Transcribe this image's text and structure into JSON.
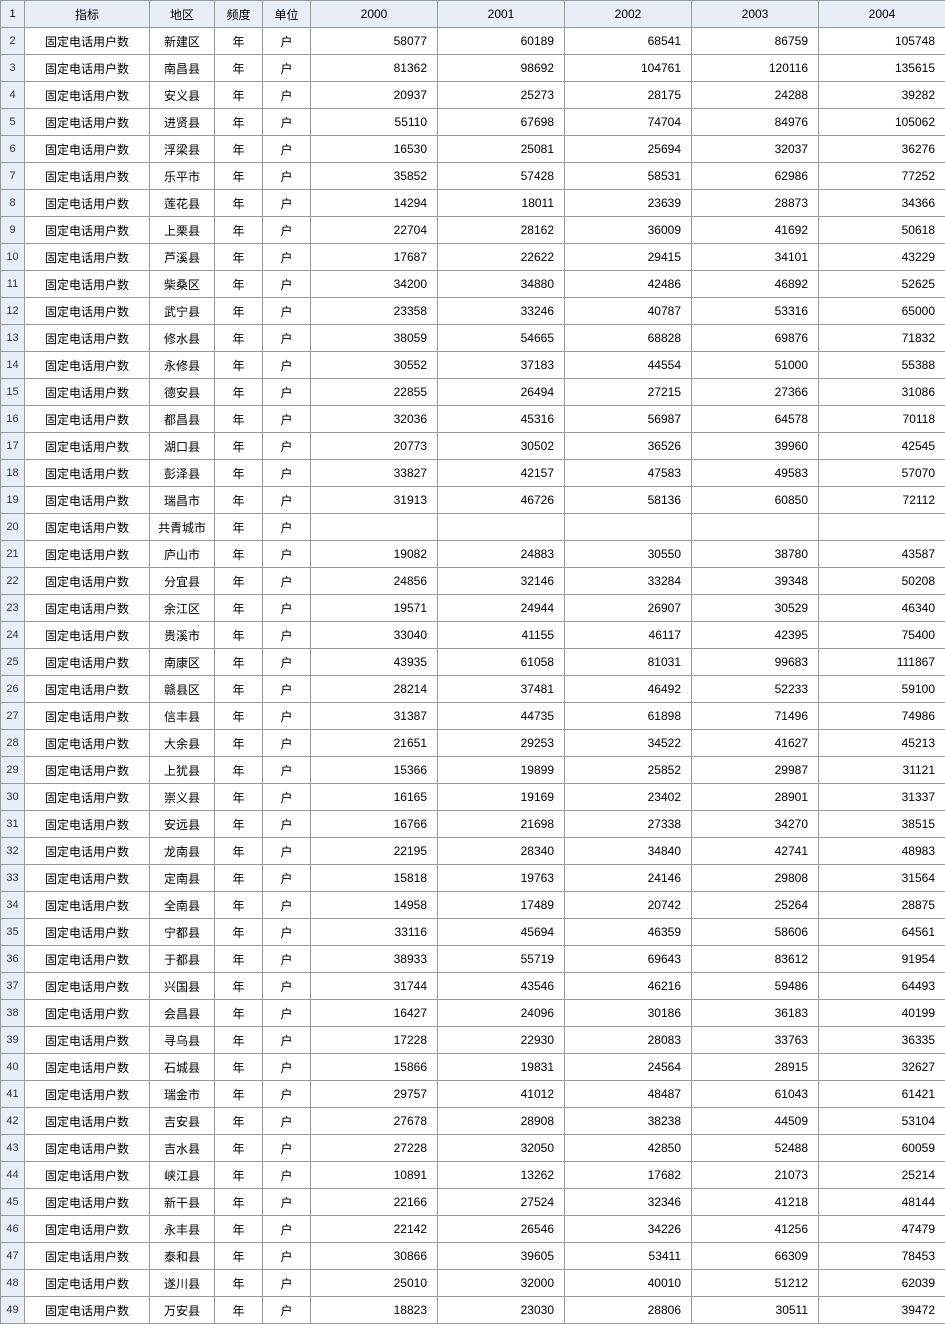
{
  "table": {
    "header_bg": "#e8eef7",
    "rownum_bg": "#e8eef7",
    "border_color": "#999999",
    "font_size": 12,
    "columns": [
      "指标",
      "地区",
      "频度",
      "单位",
      "2000",
      "2001",
      "2002",
      "2003",
      "2004"
    ],
    "rows": [
      {
        "n": 2,
        "indicator": "固定电话用户数",
        "region": "新建区",
        "freq": "年",
        "unit": "户",
        "y": [
          "58077",
          "60189",
          "68541",
          "86759",
          "105748"
        ]
      },
      {
        "n": 3,
        "indicator": "固定电话用户数",
        "region": "南昌县",
        "freq": "年",
        "unit": "户",
        "y": [
          "81362",
          "98692",
          "104761",
          "120116",
          "135615"
        ]
      },
      {
        "n": 4,
        "indicator": "固定电话用户数",
        "region": "安义县",
        "freq": "年",
        "unit": "户",
        "y": [
          "20937",
          "25273",
          "28175",
          "24288",
          "39282"
        ]
      },
      {
        "n": 5,
        "indicator": "固定电话用户数",
        "region": "进贤县",
        "freq": "年",
        "unit": "户",
        "y": [
          "55110",
          "67698",
          "74704",
          "84976",
          "105062"
        ]
      },
      {
        "n": 6,
        "indicator": "固定电话用户数",
        "region": "浮梁县",
        "freq": "年",
        "unit": "户",
        "y": [
          "16530",
          "25081",
          "25694",
          "32037",
          "36276"
        ]
      },
      {
        "n": 7,
        "indicator": "固定电话用户数",
        "region": "乐平市",
        "freq": "年",
        "unit": "户",
        "y": [
          "35852",
          "57428",
          "58531",
          "62986",
          "77252"
        ]
      },
      {
        "n": 8,
        "indicator": "固定电话用户数",
        "region": "莲花县",
        "freq": "年",
        "unit": "户",
        "y": [
          "14294",
          "18011",
          "23639",
          "28873",
          "34366"
        ]
      },
      {
        "n": 9,
        "indicator": "固定电话用户数",
        "region": "上栗县",
        "freq": "年",
        "unit": "户",
        "y": [
          "22704",
          "28162",
          "36009",
          "41692",
          "50618"
        ]
      },
      {
        "n": 10,
        "indicator": "固定电话用户数",
        "region": "芦溪县",
        "freq": "年",
        "unit": "户",
        "y": [
          "17687",
          "22622",
          "29415",
          "34101",
          "43229"
        ]
      },
      {
        "n": 11,
        "indicator": "固定电话用户数",
        "region": "柴桑区",
        "freq": "年",
        "unit": "户",
        "y": [
          "34200",
          "34880",
          "42486",
          "46892",
          "52625"
        ]
      },
      {
        "n": 12,
        "indicator": "固定电话用户数",
        "region": "武宁县",
        "freq": "年",
        "unit": "户",
        "y": [
          "23358",
          "33246",
          "40787",
          "53316",
          "65000"
        ]
      },
      {
        "n": 13,
        "indicator": "固定电话用户数",
        "region": "修水县",
        "freq": "年",
        "unit": "户",
        "y": [
          "38059",
          "54665",
          "68828",
          "69876",
          "71832"
        ]
      },
      {
        "n": 14,
        "indicator": "固定电话用户数",
        "region": "永修县",
        "freq": "年",
        "unit": "户",
        "y": [
          "30552",
          "37183",
          "44554",
          "51000",
          "55388"
        ]
      },
      {
        "n": 15,
        "indicator": "固定电话用户数",
        "region": "德安县",
        "freq": "年",
        "unit": "户",
        "y": [
          "22855",
          "26494",
          "27215",
          "27366",
          "31086"
        ]
      },
      {
        "n": 16,
        "indicator": "固定电话用户数",
        "region": "都昌县",
        "freq": "年",
        "unit": "户",
        "y": [
          "32036",
          "45316",
          "56987",
          "64578",
          "70118"
        ]
      },
      {
        "n": 17,
        "indicator": "固定电话用户数",
        "region": "湖口县",
        "freq": "年",
        "unit": "户",
        "y": [
          "20773",
          "30502",
          "36526",
          "39960",
          "42545"
        ]
      },
      {
        "n": 18,
        "indicator": "固定电话用户数",
        "region": "彭泽县",
        "freq": "年",
        "unit": "户",
        "y": [
          "33827",
          "42157",
          "47583",
          "49583",
          "57070"
        ]
      },
      {
        "n": 19,
        "indicator": "固定电话用户数",
        "region": "瑞昌市",
        "freq": "年",
        "unit": "户",
        "y": [
          "31913",
          "46726",
          "58136",
          "60850",
          "72112"
        ]
      },
      {
        "n": 20,
        "indicator": "固定电话用户数",
        "region": "共青城市",
        "freq": "年",
        "unit": "户",
        "y": [
          "",
          "",
          "",
          "",
          ""
        ]
      },
      {
        "n": 21,
        "indicator": "固定电话用户数",
        "region": "庐山市",
        "freq": "年",
        "unit": "户",
        "y": [
          "19082",
          "24883",
          "30550",
          "38780",
          "43587"
        ]
      },
      {
        "n": 22,
        "indicator": "固定电话用户数",
        "region": "分宜县",
        "freq": "年",
        "unit": "户",
        "y": [
          "24856",
          "32146",
          "33284",
          "39348",
          "50208"
        ]
      },
      {
        "n": 23,
        "indicator": "固定电话用户数",
        "region": "余江区",
        "freq": "年",
        "unit": "户",
        "y": [
          "19571",
          "24944",
          "26907",
          "30529",
          "46340"
        ]
      },
      {
        "n": 24,
        "indicator": "固定电话用户数",
        "region": "贵溪市",
        "freq": "年",
        "unit": "户",
        "y": [
          "33040",
          "41155",
          "46117",
          "42395",
          "75400"
        ]
      },
      {
        "n": 25,
        "indicator": "固定电话用户数",
        "region": "南康区",
        "freq": "年",
        "unit": "户",
        "y": [
          "43935",
          "61058",
          "81031",
          "99683",
          "111867"
        ]
      },
      {
        "n": 26,
        "indicator": "固定电话用户数",
        "region": "赣县区",
        "freq": "年",
        "unit": "户",
        "y": [
          "28214",
          "37481",
          "46492",
          "52233",
          "59100"
        ]
      },
      {
        "n": 27,
        "indicator": "固定电话用户数",
        "region": "信丰县",
        "freq": "年",
        "unit": "户",
        "y": [
          "31387",
          "44735",
          "61898",
          "71496",
          "74986"
        ]
      },
      {
        "n": 28,
        "indicator": "固定电话用户数",
        "region": "大余县",
        "freq": "年",
        "unit": "户",
        "y": [
          "21651",
          "29253",
          "34522",
          "41627",
          "45213"
        ]
      },
      {
        "n": 29,
        "indicator": "固定电话用户数",
        "region": "上犹县",
        "freq": "年",
        "unit": "户",
        "y": [
          "15366",
          "19899",
          "25852",
          "29987",
          "31121"
        ]
      },
      {
        "n": 30,
        "indicator": "固定电话用户数",
        "region": "崇义县",
        "freq": "年",
        "unit": "户",
        "y": [
          "16165",
          "19169",
          "23402",
          "28901",
          "31337"
        ]
      },
      {
        "n": 31,
        "indicator": "固定电话用户数",
        "region": "安远县",
        "freq": "年",
        "unit": "户",
        "y": [
          "16766",
          "21698",
          "27338",
          "34270",
          "38515"
        ]
      },
      {
        "n": 32,
        "indicator": "固定电话用户数",
        "region": "龙南县",
        "freq": "年",
        "unit": "户",
        "y": [
          "22195",
          "28340",
          "34840",
          "42741",
          "48983"
        ]
      },
      {
        "n": 33,
        "indicator": "固定电话用户数",
        "region": "定南县",
        "freq": "年",
        "unit": "户",
        "y": [
          "15818",
          "19763",
          "24146",
          "29808",
          "31564"
        ]
      },
      {
        "n": 34,
        "indicator": "固定电话用户数",
        "region": "全南县",
        "freq": "年",
        "unit": "户",
        "y": [
          "14958",
          "17489",
          "20742",
          "25264",
          "28875"
        ]
      },
      {
        "n": 35,
        "indicator": "固定电话用户数",
        "region": "宁都县",
        "freq": "年",
        "unit": "户",
        "y": [
          "33116",
          "45694",
          "46359",
          "58606",
          "64561"
        ]
      },
      {
        "n": 36,
        "indicator": "固定电话用户数",
        "region": "于都县",
        "freq": "年",
        "unit": "户",
        "y": [
          "38933",
          "55719",
          "69643",
          "83612",
          "91954"
        ]
      },
      {
        "n": 37,
        "indicator": "固定电话用户数",
        "region": "兴国县",
        "freq": "年",
        "unit": "户",
        "y": [
          "31744",
          "43546",
          "46216",
          "59486",
          "64493"
        ]
      },
      {
        "n": 38,
        "indicator": "固定电话用户数",
        "region": "会昌县",
        "freq": "年",
        "unit": "户",
        "y": [
          "16427",
          "24096",
          "30186",
          "36183",
          "40199"
        ]
      },
      {
        "n": 39,
        "indicator": "固定电话用户数",
        "region": "寻乌县",
        "freq": "年",
        "unit": "户",
        "y": [
          "17228",
          "22930",
          "28083",
          "33763",
          "36335"
        ]
      },
      {
        "n": 40,
        "indicator": "固定电话用户数",
        "region": "石城县",
        "freq": "年",
        "unit": "户",
        "y": [
          "15866",
          "19831",
          "24564",
          "28915",
          "32627"
        ]
      },
      {
        "n": 41,
        "indicator": "固定电话用户数",
        "region": "瑞金市",
        "freq": "年",
        "unit": "户",
        "y": [
          "29757",
          "41012",
          "48487",
          "61043",
          "61421"
        ]
      },
      {
        "n": 42,
        "indicator": "固定电话用户数",
        "region": "吉安县",
        "freq": "年",
        "unit": "户",
        "y": [
          "27678",
          "28908",
          "38238",
          "44509",
          "53104"
        ]
      },
      {
        "n": 43,
        "indicator": "固定电话用户数",
        "region": "吉水县",
        "freq": "年",
        "unit": "户",
        "y": [
          "27228",
          "32050",
          "42850",
          "52488",
          "60059"
        ]
      },
      {
        "n": 44,
        "indicator": "固定电话用户数",
        "region": "峡江县",
        "freq": "年",
        "unit": "户",
        "y": [
          "10891",
          "13262",
          "17682",
          "21073",
          "25214"
        ]
      },
      {
        "n": 45,
        "indicator": "固定电话用户数",
        "region": "新干县",
        "freq": "年",
        "unit": "户",
        "y": [
          "22166",
          "27524",
          "32346",
          "41218",
          "48144"
        ]
      },
      {
        "n": 46,
        "indicator": "固定电话用户数",
        "region": "永丰县",
        "freq": "年",
        "unit": "户",
        "y": [
          "22142",
          "26546",
          "34226",
          "41256",
          "47479"
        ]
      },
      {
        "n": 47,
        "indicator": "固定电话用户数",
        "region": "泰和县",
        "freq": "年",
        "unit": "户",
        "y": [
          "30866",
          "39605",
          "53411",
          "66309",
          "78453"
        ]
      },
      {
        "n": 48,
        "indicator": "固定电话用户数",
        "region": "遂川县",
        "freq": "年",
        "unit": "户",
        "y": [
          "25010",
          "32000",
          "40010",
          "51212",
          "62039"
        ]
      },
      {
        "n": 49,
        "indicator": "固定电话用户数",
        "region": "万安县",
        "freq": "年",
        "unit": "户",
        "y": [
          "18823",
          "23030",
          "28806",
          "30511",
          "39472"
        ]
      }
    ]
  }
}
